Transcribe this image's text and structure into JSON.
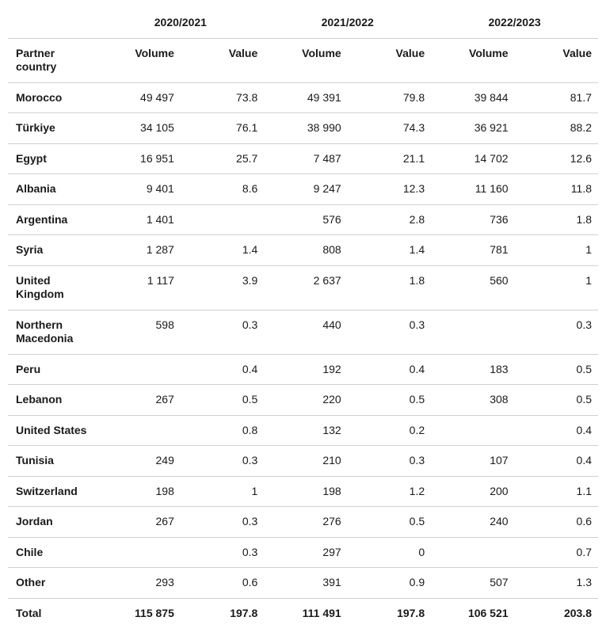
{
  "table": {
    "type": "table",
    "background_color": "#ffffff",
    "grid_color": "#d0d0d0",
    "text_color": "#1a1a1a",
    "font_size_pt": 11,
    "header_font_weight": 700,
    "row_label_font_weight": 700,
    "column_alignment": [
      "left",
      "right",
      "right",
      "right",
      "right",
      "right",
      "right"
    ],
    "row_label_header": "Partner country",
    "periods": [
      "2020/2021",
      "2021/2022",
      "2022/2023"
    ],
    "sub_columns": [
      "Volume",
      "Value"
    ],
    "rows": [
      {
        "label": "Morocco",
        "cells": [
          "49 497",
          "73.8",
          "49 391",
          "79.8",
          "39 844",
          "81.7"
        ]
      },
      {
        "label": "Türkiye",
        "cells": [
          "34 105",
          "76.1",
          "38 990",
          "74.3",
          "36 921",
          "88.2"
        ]
      },
      {
        "label": "Egypt",
        "cells": [
          "16 951",
          "25.7",
          "7 487",
          "21.1",
          "14 702",
          "12.6"
        ]
      },
      {
        "label": "Albania",
        "cells": [
          "9 401",
          "8.6",
          "9 247",
          "12.3",
          "11 160",
          "11.8"
        ]
      },
      {
        "label": "Argentina",
        "cells": [
          "1 401",
          "",
          "576",
          "2.8",
          "736",
          "1.8"
        ]
      },
      {
        "label": "Syria",
        "cells": [
          "1 287",
          "1.4",
          "808",
          "1.4",
          "781",
          "1"
        ]
      },
      {
        "label": "United Kingdom",
        "cells": [
          "1 117",
          "3.9",
          "2 637",
          "1.8",
          "560",
          "1"
        ]
      },
      {
        "label": "Northern Macedonia",
        "cells": [
          "598",
          "0.3",
          "440",
          "0.3",
          "",
          "0.3"
        ]
      },
      {
        "label": "Peru",
        "cells": [
          "",
          "0.4",
          "192",
          "0.4",
          "183",
          "0.5"
        ]
      },
      {
        "label": "Lebanon",
        "cells": [
          "267",
          "0.5",
          "220",
          "0.5",
          "308",
          "0.5"
        ]
      },
      {
        "label": "United States",
        "cells": [
          "",
          "0.8",
          "132",
          "0.2",
          "",
          "0.4"
        ]
      },
      {
        "label": "Tunisia",
        "cells": [
          "249",
          "0.3",
          "210",
          "0.3",
          "107",
          "0.4"
        ]
      },
      {
        "label": "Switzerland",
        "cells": [
          "198",
          "1",
          "198",
          "1.2",
          "200",
          "1.1"
        ]
      },
      {
        "label": "Jordan",
        "cells": [
          "267",
          "0.3",
          "276",
          "0.5",
          "240",
          "0.6"
        ]
      },
      {
        "label": "Chile",
        "cells": [
          "",
          "0.3",
          "297",
          "0",
          "",
          "0.7"
        ]
      },
      {
        "label": "Other",
        "cells": [
          "293",
          "0.6",
          "391",
          "0.9",
          "507",
          "1.3"
        ]
      }
    ],
    "total": {
      "label": "Total",
      "cells": [
        "115 875",
        "197.8",
        "111 491",
        "197.8",
        "106 521",
        "203.8"
      ]
    }
  }
}
